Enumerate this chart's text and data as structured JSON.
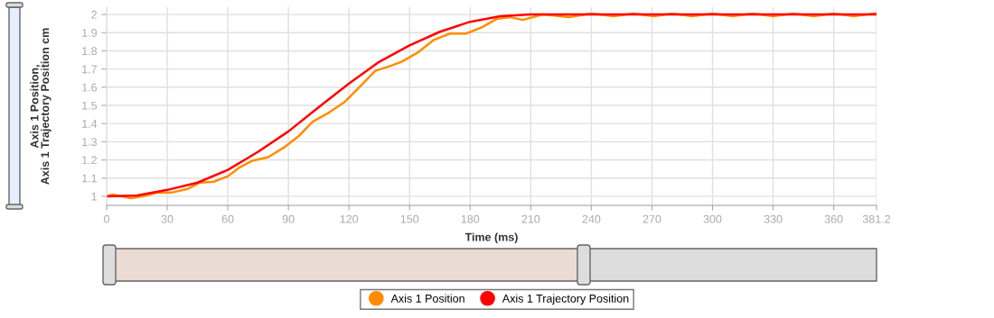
{
  "chart_data": {
    "type": "line",
    "xlabel": "Time (ms)",
    "ylabel": "Axis 1 Position,\nAxis 1 Trajectory Position cm",
    "xlim": [
      0,
      381.2
    ],
    "xticks": [
      0,
      30,
      60,
      90,
      120,
      150,
      180,
      210,
      240,
      270,
      300,
      330,
      360,
      381.2
    ],
    "ylim": [
      0.95,
      2.04
    ],
    "yticks": [
      1,
      1.1,
      1.2,
      1.3,
      1.4,
      1.5,
      1.6,
      1.7,
      1.8,
      1.9,
      2
    ],
    "grid": true,
    "legend": "bottom",
    "series": [
      {
        "name": "Axis 1 Position",
        "color": "#ff8c00",
        "x": [
          0,
          3,
          12,
          20,
          25,
          32,
          40,
          46,
          53,
          60,
          66,
          72,
          80,
          88,
          95,
          102,
          110,
          118,
          126,
          133,
          140,
          146,
          154,
          162,
          170,
          178,
          186,
          193,
          200,
          206,
          216,
          229,
          240,
          251,
          261,
          271,
          280,
          290,
          300,
          310,
          320,
          330,
          340,
          350,
          360,
          370,
          380,
          381.2
        ],
        "values": [
          1.0,
          1.01,
          0.99,
          1.005,
          1.02,
          1.02,
          1.04,
          1.075,
          1.08,
          1.11,
          1.16,
          1.195,
          1.215,
          1.27,
          1.33,
          1.41,
          1.46,
          1.52,
          1.61,
          1.69,
          1.715,
          1.74,
          1.79,
          1.86,
          1.895,
          1.895,
          1.93,
          1.975,
          1.985,
          1.97,
          2.0,
          1.985,
          2.005,
          1.99,
          2.005,
          1.99,
          2.005,
          1.99,
          2.005,
          1.99,
          2.005,
          1.99,
          2.005,
          1.99,
          2.005,
          1.99,
          2.005,
          2.005
        ]
      },
      {
        "name": "Axis 1 Trajectory Position",
        "color": "#ff0000",
        "x": [
          0,
          15,
          30,
          45,
          60,
          75,
          90,
          105,
          120,
          135,
          150,
          165,
          180,
          195,
          210,
          240,
          300,
          381.2
        ],
        "values": [
          1.0,
          1.005,
          1.035,
          1.075,
          1.145,
          1.245,
          1.357,
          1.49,
          1.62,
          1.74,
          1.83,
          1.905,
          1.96,
          1.99,
          2.0,
          2.0,
          2.0,
          2.0
        ]
      }
    ]
  }
}
